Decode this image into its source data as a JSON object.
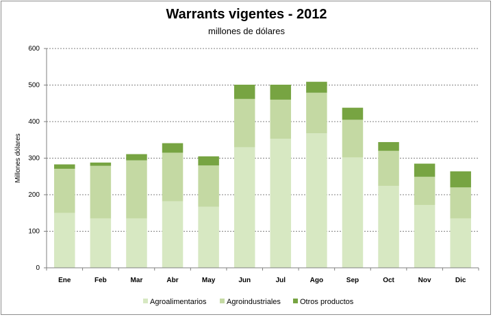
{
  "chart_data": {
    "type": "bar",
    "stacked": true,
    "title": "Warrants vigentes - 2012",
    "subtitle": "millones de dólares",
    "xlabel": "",
    "ylabel": "Millones dólares",
    "ylim": [
      0,
      600
    ],
    "yticks": [
      0,
      100,
      200,
      300,
      400,
      500,
      600
    ],
    "grid": true,
    "legend_position": "bottom",
    "categories": [
      "Ene",
      "Feb",
      "Mar",
      "Abr",
      "May",
      "Jun",
      "Jul",
      "Ago",
      "Sep",
      "Oct",
      "Nov",
      "Dic"
    ],
    "series": [
      {
        "name": "Agroalimentarios",
        "color": "#d7e8c2",
        "values": [
          150,
          135,
          135,
          182,
          167,
          330,
          353,
          368,
          302,
          224,
          172,
          135
        ]
      },
      {
        "name": "Agroindustriales",
        "color": "#c4d9a3",
        "values": [
          121,
          144,
          159,
          133,
          113,
          132,
          107,
          111,
          103,
          96,
          77,
          85
        ]
      },
      {
        "name": "Otros productos",
        "color": "#77a442",
        "values": [
          12,
          9,
          17,
          26,
          25,
          39,
          41,
          30,
          33,
          24,
          36,
          44
        ]
      }
    ]
  }
}
